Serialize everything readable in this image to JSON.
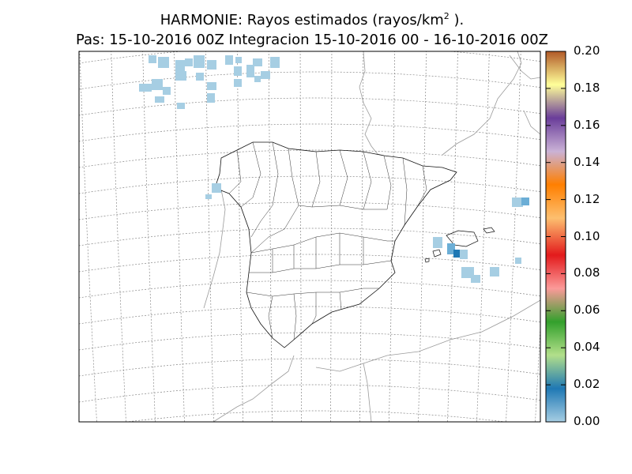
{
  "title": {
    "line1_prefix": "HARMONIE: Rayos estimados  (rayos/km",
    "line1_sup": "2",
    "line1_suffix": " ).",
    "line2": "Pas: 15-10-2016 00Z Integracion 15-10-2016 00 - 16-10-2016 00Z"
  },
  "colorbar": {
    "ticks": [
      "0.00",
      "0.02",
      "0.04",
      "0.06",
      "0.08",
      "0.10",
      "0.12",
      "0.14",
      "0.16",
      "0.18",
      "0.20"
    ],
    "colors": [
      "#a6cee3",
      "#1f78b4",
      "#b2df8a",
      "#33a02c",
      "#fb9a99",
      "#e31a1c",
      "#fdbf6f",
      "#ff7f00",
      "#cab2d6",
      "#6a3d9a",
      "#ffff99",
      "#b15928"
    ]
  },
  "lightning_levels": {
    "light": "#a6cee3",
    "medium": "#6baed6",
    "dark": "#1f78b4"
  }
}
